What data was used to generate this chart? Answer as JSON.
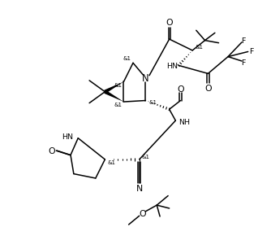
{
  "bg": "#ffffff",
  "lc": "#000000",
  "lw": 1.1,
  "fs": 6.8,
  "fw": 4.09,
  "fh": 3.72,
  "dpi": 100
}
